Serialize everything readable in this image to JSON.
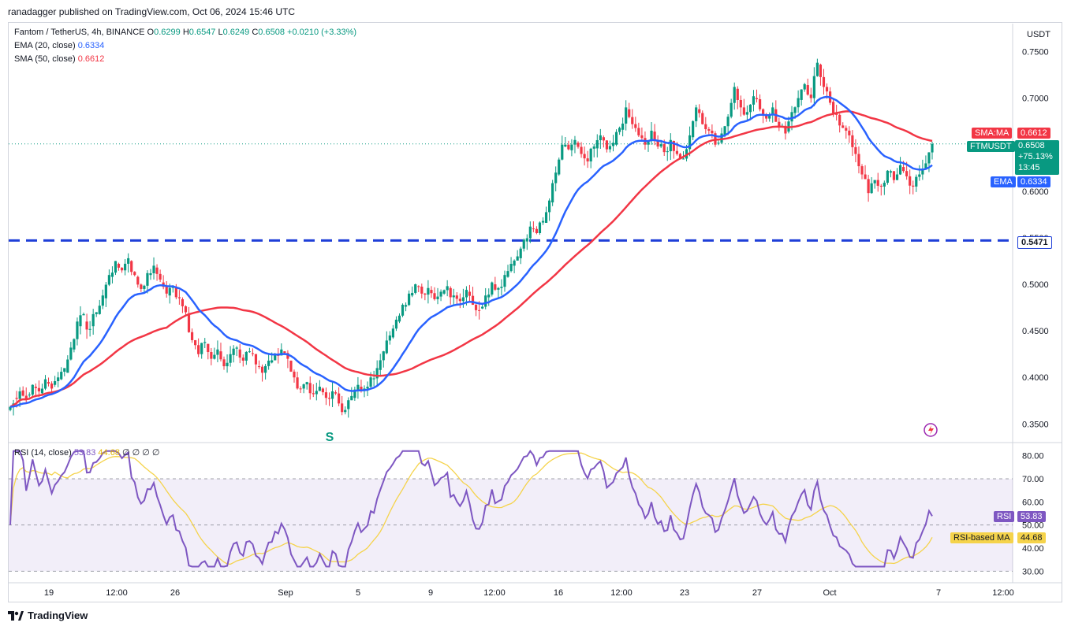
{
  "publisher": "ranadagger published on TradingView.com, Oct 06, 2024 15:46 UTC",
  "footer_brand": "TradingView",
  "legend": {
    "symbol": "Fantom / TetherUS, 4h, BINANCE",
    "open_label": "O",
    "open": "0.6299",
    "high_label": "H",
    "high": "0.6547",
    "low_label": "L",
    "low": "0.6249",
    "close_label": "C",
    "close": "0.6508",
    "change": "+0.0210 (+3.33%)",
    "ema_label": "EMA (20, close)",
    "ema_value": "0.6334",
    "sma_label": "SMA (50, close)",
    "sma_value": "0.6612",
    "rsi_label": "RSI (14, close)",
    "rsi_value": "53.83",
    "rsi_ma_value": "44.68",
    "rsi_extra": "∅ ∅ ∅ ∅"
  },
  "price_axis": {
    "currency": "USDT",
    "ticks": [
      "0.7500",
      "0.7000",
      "0.6500",
      "0.6000",
      "0.5500",
      "0.5000",
      "0.4500",
      "0.4000",
      "0.3500"
    ]
  },
  "rsi_axis": {
    "ticks": [
      "80.00",
      "70.00",
      "60.00",
      "50.00",
      "40.00",
      "30.00"
    ]
  },
  "time_axis": [
    "19",
    "12:00",
    "26",
    "Sep",
    "5",
    "9",
    "12:00",
    "16",
    "12:00",
    "23",
    "27",
    "Oct",
    "7",
    "12:00"
  ],
  "labels": {
    "sma_tag": "SMA:MA",
    "sma_tag_value": "0.6612",
    "symbol_tag": "FTMUSDT",
    "symbol_tag_value": "0.6508",
    "symbol_tag_pct": "+75.13%",
    "symbol_tag_time": "13:45",
    "ema_tag": "EMA",
    "ema_tag_value": "0.6334",
    "support_tag_value": "0.5471",
    "rsi_tag": "RSI",
    "rsi_tag_value": "53.83",
    "rsi_ma_tag": "RSI-based MA",
    "rsi_ma_tag_value": "44.68",
    "annotation_s": "S"
  },
  "colors": {
    "up": "#089981",
    "down": "#f23645",
    "ema": "#2962ff",
    "sma": "#f23645",
    "rsi": "#7e57c2",
    "rsi_ma": "#f5d34b",
    "support": "#1e3fd8"
  },
  "chart_data": {
    "type": "candlestick",
    "symbol": "FTMUSDT",
    "timeframe": "4h",
    "y_range": [
      0.33,
      0.78
    ],
    "support_level": 0.5471,
    "series_points": [
      [
        0.365,
        0.372
      ],
      [
        0.378,
        0.385
      ],
      [
        0.386,
        0.376
      ],
      [
        0.381,
        0.392
      ],
      [
        0.39,
        0.385
      ],
      [
        0.383,
        0.398
      ],
      [
        0.395,
        0.388
      ],
      [
        0.392,
        0.4
      ],
      [
        0.398,
        0.41
      ],
      [
        0.405,
        0.432
      ],
      [
        0.43,
        0.46
      ],
      [
        0.455,
        0.468
      ],
      [
        0.46,
        0.452
      ],
      [
        0.455,
        0.47
      ],
      [
        0.468,
        0.488
      ],
      [
        0.485,
        0.51
      ],
      [
        0.508,
        0.525
      ],
      [
        0.522,
        0.515
      ],
      [
        0.515,
        0.528
      ],
      [
        0.525,
        0.51
      ],
      [
        0.508,
        0.495
      ],
      [
        0.495,
        0.512
      ],
      [
        0.51,
        0.52
      ],
      [
        0.518,
        0.505
      ],
      [
        0.502,
        0.49
      ],
      [
        0.488,
        0.498
      ],
      [
        0.496,
        0.485
      ],
      [
        0.484,
        0.47
      ],
      [
        0.468,
        0.44
      ],
      [
        0.44,
        0.425
      ],
      [
        0.425,
        0.438
      ],
      [
        0.436,
        0.42
      ],
      [
        0.42,
        0.43
      ],
      [
        0.428,
        0.412
      ],
      [
        0.412,
        0.425
      ],
      [
        0.424,
        0.432
      ],
      [
        0.43,
        0.418
      ],
      [
        0.418,
        0.428
      ],
      [
        0.426,
        0.414
      ],
      [
        0.412,
        0.405
      ],
      [
        0.405,
        0.418
      ],
      [
        0.416,
        0.425
      ],
      [
        0.424,
        0.43
      ],
      [
        0.428,
        0.42
      ],
      [
        0.418,
        0.4
      ],
      [
        0.4,
        0.388
      ],
      [
        0.388,
        0.395
      ],
      [
        0.394,
        0.382
      ],
      [
        0.382,
        0.39
      ],
      [
        0.388,
        0.378
      ],
      [
        0.378,
        0.385
      ],
      [
        0.384,
        0.372
      ],
      [
        0.372,
        0.365
      ],
      [
        0.366,
        0.38
      ],
      [
        0.378,
        0.392
      ],
      [
        0.39,
        0.388
      ],
      [
        0.388,
        0.4
      ],
      [
        0.398,
        0.41
      ],
      [
        0.408,
        0.428
      ],
      [
        0.426,
        0.445
      ],
      [
        0.443,
        0.462
      ],
      [
        0.46,
        0.478
      ],
      [
        0.476,
        0.49
      ],
      [
        0.488,
        0.5
      ],
      [
        0.498,
        0.49
      ],
      [
        0.49,
        0.496
      ],
      [
        0.494,
        0.484
      ],
      [
        0.484,
        0.492
      ],
      [
        0.49,
        0.498
      ],
      [
        0.496,
        0.488
      ],
      [
        0.488,
        0.482
      ],
      [
        0.482,
        0.494
      ],
      [
        0.492,
        0.478
      ],
      [
        0.478,
        0.472
      ],
      [
        0.474,
        0.488
      ],
      [
        0.486,
        0.502
      ],
      [
        0.5,
        0.496
      ],
      [
        0.496,
        0.51
      ],
      [
        0.508,
        0.522
      ],
      [
        0.52,
        0.53
      ],
      [
        0.528,
        0.548
      ],
      [
        0.546,
        0.562
      ],
      [
        0.56,
        0.555
      ],
      [
        0.555,
        0.568
      ],
      [
        0.566,
        0.59
      ],
      [
        0.588,
        0.62
      ],
      [
        0.618,
        0.65
      ],
      [
        0.648,
        0.645
      ],
      [
        0.644,
        0.655
      ],
      [
        0.652,
        0.64
      ],
      [
        0.64,
        0.632
      ],
      [
        0.632,
        0.648
      ],
      [
        0.646,
        0.66
      ],
      [
        0.658,
        0.645
      ],
      [
        0.645,
        0.652
      ],
      [
        0.65,
        0.668
      ],
      [
        0.666,
        0.69
      ],
      [
        0.688,
        0.672
      ],
      [
        0.672,
        0.66
      ],
      [
        0.66,
        0.65
      ],
      [
        0.65,
        0.665
      ],
      [
        0.664,
        0.648
      ],
      [
        0.648,
        0.642
      ],
      [
        0.642,
        0.655
      ],
      [
        0.654,
        0.64
      ],
      [
        0.64,
        0.635
      ],
      [
        0.635,
        0.66
      ],
      [
        0.658,
        0.69
      ],
      [
        0.688,
        0.672
      ],
      [
        0.672,
        0.665
      ],
      [
        0.665,
        0.65
      ],
      [
        0.652,
        0.662
      ],
      [
        0.66,
        0.68
      ],
      [
        0.68,
        0.712
      ],
      [
        0.71,
        0.69
      ],
      [
        0.69,
        0.685
      ],
      [
        0.685,
        0.702
      ],
      [
        0.7,
        0.688
      ],
      [
        0.688,
        0.678
      ],
      [
        0.678,
        0.69
      ],
      [
        0.688,
        0.67
      ],
      [
        0.67,
        0.662
      ],
      [
        0.664,
        0.685
      ],
      [
        0.684,
        0.7
      ],
      [
        0.698,
        0.715
      ],
      [
        0.714,
        0.7
      ],
      [
        0.7,
        0.738
      ],
      [
        0.736,
        0.712
      ],
      [
        0.712,
        0.695
      ],
      [
        0.696,
        0.682
      ],
      [
        0.682,
        0.668
      ],
      [
        0.668,
        0.66
      ],
      [
        0.66,
        0.64
      ],
      [
        0.64,
        0.618
      ],
      [
        0.618,
        0.598
      ],
      [
        0.598,
        0.612
      ],
      [
        0.612,
        0.605
      ],
      [
        0.605,
        0.622
      ],
      [
        0.62,
        0.612
      ],
      [
        0.612,
        0.628
      ],
      [
        0.626,
        0.616
      ],
      [
        0.616,
        0.605
      ],
      [
        0.605,
        0.618
      ],
      [
        0.618,
        0.6299
      ],
      [
        0.6299,
        0.6508
      ]
    ],
    "ema": {
      "name": "EMA (20, close)",
      "last": 0.6334
    },
    "sma": {
      "name": "SMA (50, close)",
      "last": 0.6612
    },
    "rsi": {
      "name": "RSI (14, close)",
      "last": 53.83,
      "ma_last": 44.68,
      "range": [
        25,
        85
      ],
      "bands": [
        30,
        50,
        70
      ]
    }
  }
}
